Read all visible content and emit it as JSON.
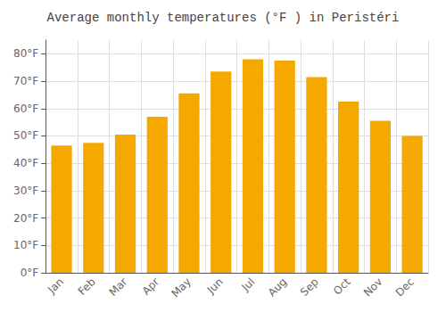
{
  "chart_data": {
    "type": "bar",
    "title": "Average monthly temperatures (°F ) in Peristéri",
    "categories": [
      "Jan",
      "Feb",
      "Mar",
      "Apr",
      "May",
      "Jun",
      "Jul",
      "Aug",
      "Sep",
      "Oct",
      "Nov",
      "Dec"
    ],
    "values": [
      46.5,
      47.5,
      50.5,
      57.0,
      65.5,
      73.5,
      78.0,
      77.5,
      71.5,
      62.5,
      55.5,
      50.0
    ],
    "color": "#F5A800",
    "ylim": [
      0,
      85
    ],
    "yticks": [
      {
        "value": 0,
        "label": "0°F"
      },
      {
        "value": 10,
        "label": "10°F"
      },
      {
        "value": 20,
        "label": "20°F"
      },
      {
        "value": 30,
        "label": "30°F"
      },
      {
        "value": 40,
        "label": "40°F"
      },
      {
        "value": 50,
        "label": "50°F"
      },
      {
        "value": 60,
        "label": "60°F"
      },
      {
        "value": 70,
        "label": "70°F"
      },
      {
        "value": 80,
        "label": "80°F"
      }
    ],
    "grid": true
  }
}
